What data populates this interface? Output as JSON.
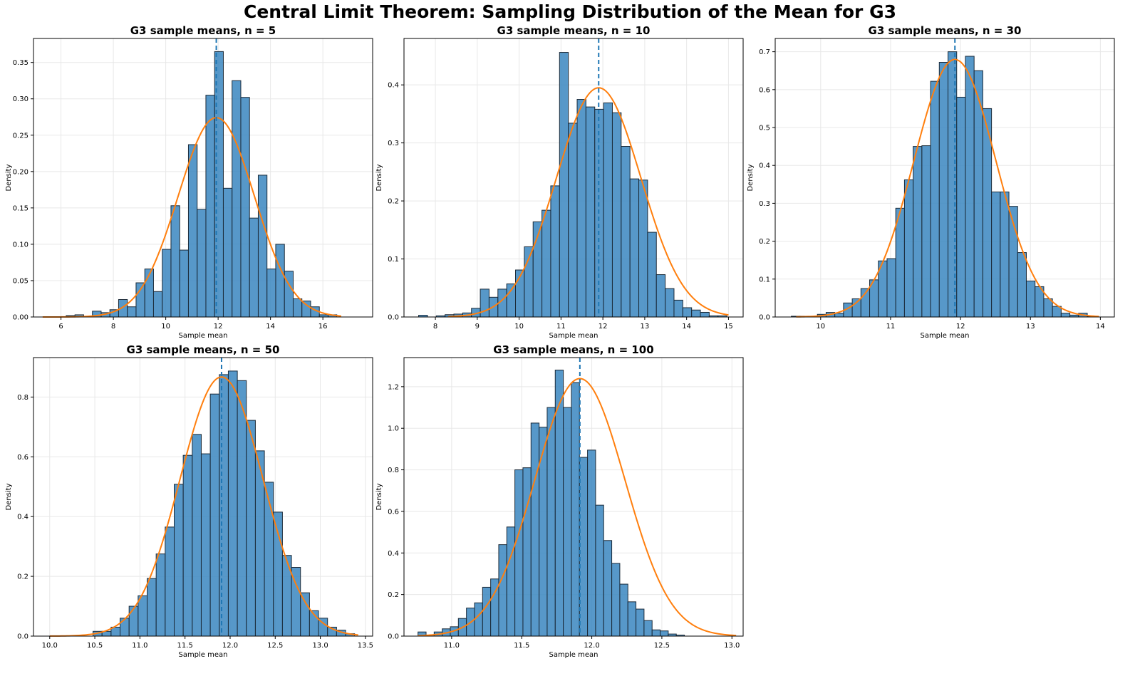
{
  "suptitle": "Central Limit Theorem: Sampling Distribution of the Mean for G3",
  "colors": {
    "bar": "#3a86bf",
    "bar_edge": "#1b2a38",
    "curve": "#ff7f0e",
    "mean_line": "#1f77b4",
    "grid": "#e8e8e8"
  },
  "chart_data": [
    {
      "type": "bar",
      "title": "G3 sample means, n = 5",
      "xlabel": "Sample mean",
      "ylabel": "Density",
      "xlim": [
        4.95,
        17.9
      ],
      "ylim": [
        0,
        0.383
      ],
      "xticks": [
        6,
        8,
        10,
        12,
        14,
        16
      ],
      "xtick_labels": [
        "6",
        "8",
        "10",
        "12",
        "14",
        "16"
      ],
      "yticks": [
        0,
        0.05,
        0.1,
        0.15,
        0.2,
        0.25,
        0.3,
        0.35
      ],
      "ytick_labels": [
        "0.00",
        "0.05",
        "0.10",
        "0.15",
        "0.20",
        "0.25",
        "0.30",
        "0.35"
      ],
      "grid": true,
      "bins": {
        "start": 6.2,
        "width": 0.3333,
        "values": [
          0.002,
          0.003,
          0,
          0.008,
          0.006,
          0.01,
          0.024,
          0.014,
          0.047,
          0.066,
          0.035,
          0.093,
          0.153,
          0.092,
          0.237,
          0.148,
          0.305,
          0.365,
          0.177,
          0.325,
          0.302,
          0.136,
          0.195,
          0.066,
          0.1,
          0.063,
          0.025,
          0.022,
          0.014,
          0.003,
          0.003
        ]
      },
      "mean": 11.93,
      "curve": {
        "mu": 11.93,
        "sigma": 1.455,
        "x_range": [
          5.3,
          16.7
        ]
      }
    },
    {
      "type": "bar",
      "title": "G3 sample means, n = 10",
      "xlabel": "Sample mean",
      "ylabel": "Density",
      "xlim": [
        7.25,
        15.35
      ],
      "ylim": [
        0,
        0.48
      ],
      "xticks": [
        8,
        9,
        10,
        11,
        12,
        13,
        14,
        15
      ],
      "xtick_labels": [
        "8",
        "9",
        "10",
        "11",
        "12",
        "13",
        "14",
        "15"
      ],
      "yticks": [
        0,
        0.1,
        0.2,
        0.3,
        0.4
      ],
      "ytick_labels": [
        "0.0",
        "0.1",
        "0.2",
        "0.3",
        "0.4"
      ],
      "grid": true,
      "bins": {
        "start": 7.6,
        "width": 0.2103,
        "values": [
          0.003,
          0,
          0.002,
          0.004,
          0.005,
          0.007,
          0.015,
          0.048,
          0.034,
          0.048,
          0.057,
          0.081,
          0.121,
          0.164,
          0.184,
          0.226,
          0.456,
          0.334,
          0.375,
          0.362,
          0.358,
          0.369,
          0.352,
          0.294,
          0.238,
          0.236,
          0.146,
          0.073,
          0.049,
          0.029,
          0.016,
          0.012,
          0.008,
          0.002,
          0.002
        ]
      },
      "mean": 11.9,
      "curve": {
        "mu": 11.9,
        "sigma": 1.01,
        "x_range": [
          8.3,
          15.0
        ]
      }
    },
    {
      "type": "bar",
      "title": "G3 sample means, n = 30",
      "xlabel": "Sample mean",
      "ylabel": "Density",
      "xlim": [
        9.35,
        14.2
      ],
      "ylim": [
        0,
        0.735
      ],
      "xticks": [
        10,
        11,
        12,
        13,
        14
      ],
      "xtick_labels": [
        "10",
        "11",
        "12",
        "13",
        "14"
      ],
      "yticks": [
        0,
        0.1,
        0.2,
        0.3,
        0.4,
        0.5,
        0.6,
        0.7
      ],
      "ytick_labels": [
        "0.0",
        "0.1",
        "0.2",
        "0.3",
        "0.4",
        "0.5",
        "0.6",
        "0.7"
      ],
      "grid": true,
      "bins": {
        "start": 9.58,
        "width": 0.1245,
        "values": [
          0.002,
          0.002,
          0.002,
          0.007,
          0.012,
          0.01,
          0.037,
          0.048,
          0.075,
          0.098,
          0.148,
          0.154,
          0.287,
          0.362,
          0.45,
          0.452,
          0.622,
          0.672,
          0.7,
          0.58,
          0.688,
          0.65,
          0.55,
          0.33,
          0.33,
          0.292,
          0.17,
          0.095,
          0.08,
          0.048,
          0.028,
          0.01,
          0.005,
          0.01,
          0.002
        ]
      },
      "mean": 11.92,
      "curve": {
        "mu": 11.92,
        "sigma": 0.587,
        "x_range": [
          9.65,
          13.98
        ]
      }
    },
    {
      "type": "bar",
      "title": "G3 sample means, n = 50",
      "xlabel": "Sample mean",
      "ylabel": "Density",
      "xlim": [
        9.82,
        13.58
      ],
      "ylim": [
        0,
        0.932
      ],
      "xticks": [
        10.0,
        10.5,
        11.0,
        11.5,
        12.0,
        12.5,
        13.0,
        13.5
      ],
      "xtick_labels": [
        "10.0",
        "10.5",
        "11.0",
        "11.5",
        "12.0",
        "12.5",
        "13.0",
        "13.5"
      ],
      "grid": true,
      "yticks": [
        0,
        0.2,
        0.4,
        0.6,
        0.8
      ],
      "ytick_labels": [
        "0.0",
        "0.2",
        "0.4",
        "0.6",
        "0.8"
      ],
      "bins": {
        "start": 10.48,
        "width": 0.1,
        "values": [
          0.016,
          0.016,
          0.03,
          0.06,
          0.1,
          0.135,
          0.193,
          0.275,
          0.365,
          0.508,
          0.605,
          0.675,
          0.61,
          0.81,
          0.875,
          0.887,
          0.855,
          0.722,
          0.62,
          0.515,
          0.415,
          0.27,
          0.23,
          0.145,
          0.085,
          0.06,
          0.03,
          0.02,
          0.008
        ]
      },
      "mean": 11.905,
      "curve": {
        "mu": 11.905,
        "sigma": 0.46,
        "x_range": [
          10.0,
          13.42
        ]
      }
    },
    {
      "type": "bar",
      "title": "G3 sample means, n = 100",
      "xlabel": "Sample mean",
      "ylabel": "Density",
      "xlim": [
        10.66,
        13.08
      ],
      "ylim": [
        0,
        1.34
      ],
      "xticks": [
        11.0,
        11.5,
        12.0,
        12.5,
        13.0
      ],
      "xtick_labels": [
        "11.0",
        "11.5",
        "12.0",
        "12.5",
        "13.0"
      ],
      "yticks": [
        0,
        0.2,
        0.4,
        0.6,
        0.8,
        1.0,
        1.2
      ],
      "ytick_labels": [
        "0.0",
        "0.2",
        "0.4",
        "0.6",
        "0.8",
        "1.0",
        "1.2"
      ],
      "grid": true,
      "bins": {
        "start": 10.76,
        "width": 0.0576,
        "values": [
          0.02,
          0.005,
          0.02,
          0.035,
          0.045,
          0.085,
          0.135,
          0.16,
          0.235,
          0.275,
          0.44,
          0.525,
          0.8,
          0.81,
          1.025,
          1.005,
          1.1,
          1.28,
          1.1,
          1.22,
          0.86,
          0.895,
          0.63,
          0.46,
          0.35,
          0.25,
          0.165,
          0.13,
          0.075,
          0.03,
          0.025,
          0.01,
          0.005
        ]
      },
      "mean": 11.915,
      "curve": {
        "mu": 11.915,
        "sigma": 0.322,
        "x_range": [
          10.76,
          13.03
        ]
      }
    }
  ]
}
